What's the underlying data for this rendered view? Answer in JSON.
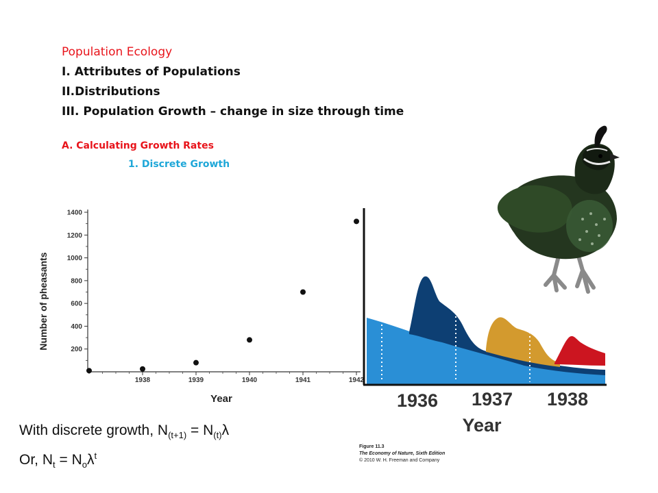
{
  "outline": {
    "title": "Population Ecology",
    "item1": "I. Attributes of Populations",
    "item2": "II.Distributions",
    "item3": "III. Population Growth – change in size through time",
    "sub_a": "A. Calculating  Growth Rates",
    "sub_1": "1. Discrete Growth"
  },
  "formula": {
    "line1_pre": "With discrete growth, N",
    "line1_sub1": "(t+1)",
    "line1_mid": " = N",
    "line1_sub2": "(t)",
    "line1_end": "λ",
    "line2_pre": "Or, N",
    "line2_sub1": "t",
    "line2_mid": " = N",
    "line2_sub2": "o",
    "line2_lambda": "λ",
    "line2_sup": "t"
  },
  "caption": {
    "figure": "Figure 11.3",
    "book": "The Economy of Nature, Sixth Edition",
    "copyright": "© 2010 W. H. Freeman and Company"
  },
  "colors": {
    "accent_red": "#e8141b",
    "accent_blue": "#1ea7d8",
    "stream_light_blue": "#2a8fd6",
    "stream_dark_blue": "#0d3f73",
    "stream_orange": "#d39a2e",
    "stream_red": "#cc1520"
  },
  "chart_data": [
    {
      "type": "scatter",
      "ylabel": "Number of pheasants",
      "xlabel": "Year",
      "x_ticks": [
        "1938",
        "1939",
        "1940",
        "1941",
        "1942"
      ],
      "y_ticks": [
        "200",
        "400",
        "600",
        "800",
        "1000",
        "1200",
        "1400"
      ],
      "ylim": [
        0,
        1400
      ],
      "xlim": [
        1937,
        1942
      ],
      "points": [
        {
          "x": 1937,
          "y": 10
        },
        {
          "x": 1938,
          "y": 25
        },
        {
          "x": 1939,
          "y": 80
        },
        {
          "x": 1940,
          "y": 280
        },
        {
          "x": 1941,
          "y": 700
        },
        {
          "x": 1942,
          "y": 1320
        }
      ]
    },
    {
      "type": "area",
      "xlabel": "Year",
      "x_ticks": [
        "1936",
        "1937",
        "1938"
      ],
      "grid": false
    }
  ]
}
